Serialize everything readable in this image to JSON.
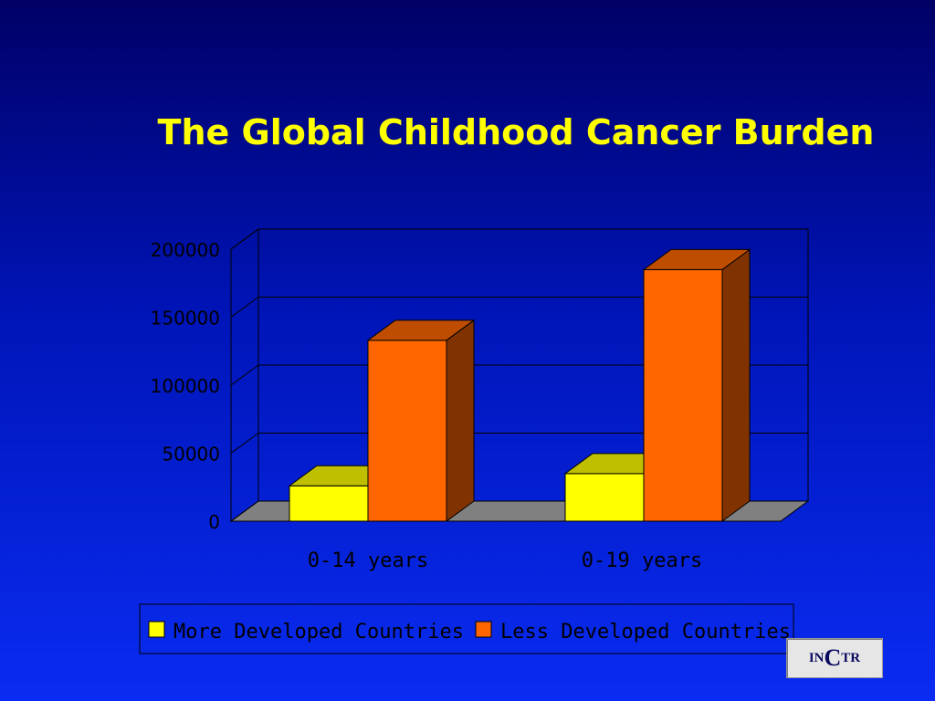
{
  "chart_data": {
    "type": "bar",
    "title": "The Global Childhood Cancer Burden",
    "categories": [
      "0-14 years",
      "0-19 years"
    ],
    "series": [
      {
        "name": "More Developed Countries",
        "values": [
          26000,
          35000
        ],
        "color": "#ffff00"
      },
      {
        "name": "Less Developed Countries",
        "values": [
          133000,
          185000
        ],
        "color": "#ff6600"
      }
    ],
    "ylim": [
      0,
      200000
    ],
    "yticks": [
      "0",
      "50000",
      "100000",
      "150000",
      "200000"
    ],
    "grid": true,
    "legend_position": "bottom",
    "colors": {
      "title": "#ffff00",
      "axis_text": "#000000",
      "wall_line": "#000000",
      "floor": "#808080"
    }
  },
  "logo": {
    "part1": "IN",
    "part2": "C",
    "part3": "TR"
  }
}
